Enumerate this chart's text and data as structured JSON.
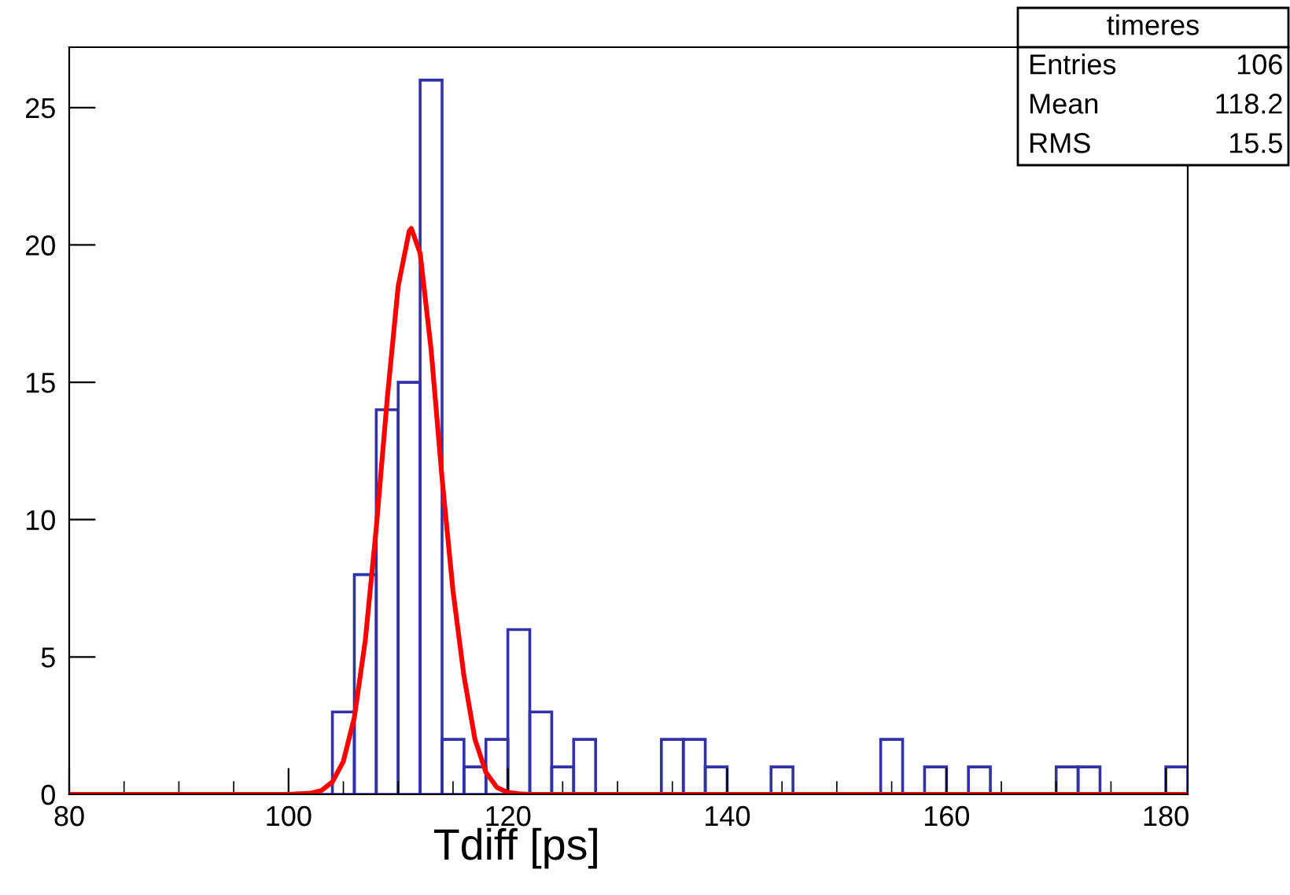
{
  "chart_data": {
    "type": "histogram",
    "xlabel": "Tdiff [ps]",
    "bins": [
      80,
      82,
      84,
      86,
      88,
      90,
      92,
      94,
      96,
      98,
      100,
      102,
      104,
      106,
      108,
      110,
      112,
      114,
      116,
      118,
      120,
      122,
      124,
      126,
      128,
      130,
      132,
      134,
      136,
      138,
      140,
      142,
      144,
      146,
      148,
      150,
      152,
      154,
      156,
      158,
      160,
      162,
      164,
      166,
      168,
      170,
      172,
      174,
      176,
      178,
      180,
      182
    ],
    "values": [
      0,
      0,
      0,
      0,
      0,
      0,
      0,
      0,
      0,
      0,
      0,
      0,
      3,
      8,
      14,
      15,
      26,
      2,
      1,
      2,
      6,
      3,
      1,
      2,
      0,
      0,
      0,
      2,
      2,
      1,
      0,
      0,
      1,
      0,
      0,
      0,
      0,
      2,
      0,
      1,
      0,
      1,
      0,
      0,
      0,
      1,
      1,
      0,
      0,
      0,
      1
    ],
    "color": "#3131a8",
    "series": [
      {
        "type": "line",
        "color": "#ff0000",
        "x": [
          80,
          100,
          102,
          103,
          104,
          105,
          106,
          107,
          108,
          109,
          110,
          111,
          111.2,
          112,
          113,
          114,
          115,
          116,
          117,
          118,
          119,
          120,
          121,
          122,
          182
        ],
        "values": [
          0,
          0,
          0.04,
          0.14,
          0.45,
          1.2,
          2.8,
          5.6,
          9.7,
          14.4,
          18.5,
          20.5,
          20.6,
          19.7,
          16.2,
          11.5,
          7.4,
          4.3,
          2.0,
          0.8,
          0.25,
          0.07,
          0.02,
          0,
          0
        ]
      }
    ],
    "xlim": [
      80,
      182
    ],
    "ylim": [
      0,
      27.2
    ],
    "xticks": [
      80,
      100,
      120,
      140,
      160,
      180
    ],
    "yticks": [
      0,
      5,
      10,
      15,
      20,
      25
    ],
    "grid": false,
    "annotations": [
      "timeres",
      "Entries",
      "106",
      "Mean",
      "118.2",
      "RMS",
      "15.5"
    ]
  }
}
